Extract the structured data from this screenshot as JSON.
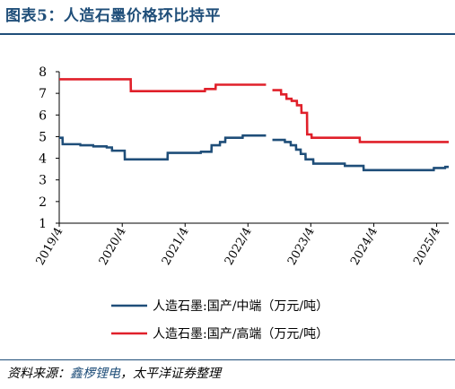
{
  "figure_title": "图表5：人造石墨价格环比持平",
  "source": {
    "prefix": "资料来源：",
    "org": "鑫椤锂电",
    "suffix": "，太平洋证券整理"
  },
  "colors": {
    "title": "#1f4e79",
    "axis": "#000000"
  },
  "chart_data": {
    "type": "line",
    "title": "",
    "xlabel": "",
    "ylabel": "",
    "ylim": [
      1,
      8
    ],
    "yticks": [
      1,
      2,
      3,
      4,
      5,
      6,
      7,
      8
    ],
    "xlim": [
      "2019-04-01",
      "2025-06-10"
    ],
    "xticks": [
      "2019/4",
      "2020/4",
      "2021/4",
      "2022/4",
      "2023/4",
      "2024/4",
      "2025/4"
    ],
    "legend_position": "bottom",
    "grid": false,
    "series": [
      {
        "name": "人造石墨:国产/中端（万元/吨）",
        "color": "#1f4e79",
        "points": [
          [
            "2019-04-01",
            4.95
          ],
          [
            "2019-04-20",
            4.95
          ],
          [
            "2019-04-21",
            4.65
          ],
          [
            "2019-08-01",
            4.65
          ],
          [
            "2019-08-02",
            4.6
          ],
          [
            "2019-10-15",
            4.6
          ],
          [
            "2019-10-16",
            4.55
          ],
          [
            "2020-01-01",
            4.55
          ],
          [
            "2020-01-02",
            4.5
          ],
          [
            "2020-02-01",
            4.5
          ],
          [
            "2020-02-02",
            4.35
          ],
          [
            "2020-04-15",
            4.35
          ],
          [
            "2020-04-16",
            3.95
          ],
          [
            "2020-12-20",
            3.95
          ],
          [
            "2020-12-21",
            4.25
          ],
          [
            "2021-07-01",
            4.25
          ],
          [
            "2021-07-02",
            4.3
          ],
          [
            "2021-09-01",
            4.3
          ],
          [
            "2021-09-02",
            4.6
          ],
          [
            "2021-10-20",
            4.6
          ],
          [
            "2021-10-21",
            4.75
          ],
          [
            "2021-11-20",
            4.75
          ],
          [
            "2021-11-21",
            4.95
          ],
          [
            "2022-03-01",
            4.95
          ],
          [
            "2022-03-02",
            5.05
          ],
          [
            "2022-07-15",
            5.05
          ],
          [
            "2022-07-16",
            null
          ],
          [
            "2022-08-20",
            null
          ],
          [
            "2022-08-21",
            4.85
          ],
          [
            "2022-11-01",
            4.85
          ],
          [
            "2022-11-02",
            4.75
          ],
          [
            "2022-12-05",
            4.75
          ],
          [
            "2022-12-06",
            4.6
          ],
          [
            "2023-01-05",
            4.6
          ],
          [
            "2023-01-06",
            4.4
          ],
          [
            "2023-02-01",
            4.4
          ],
          [
            "2023-02-02",
            4.2
          ],
          [
            "2023-03-01",
            4.2
          ],
          [
            "2023-03-02",
            3.95
          ],
          [
            "2023-04-15",
            3.95
          ],
          [
            "2023-04-16",
            3.75
          ],
          [
            "2023-10-15",
            3.75
          ],
          [
            "2023-10-16",
            3.65
          ],
          [
            "2024-02-01",
            3.65
          ],
          [
            "2024-02-02",
            3.45
          ],
          [
            "2025-03-15",
            3.45
          ],
          [
            "2025-03-16",
            3.55
          ],
          [
            "2025-05-20",
            3.55
          ],
          [
            "2025-05-21",
            3.6
          ],
          [
            "2025-06-10",
            3.6
          ]
        ]
      },
      {
        "name": "人造石墨:国产/高端（万元/吨）",
        "color": "#e0202a",
        "points": [
          [
            "2019-04-01",
            7.65
          ],
          [
            "2020-05-20",
            7.65
          ],
          [
            "2020-05-21",
            7.1
          ],
          [
            "2021-07-25",
            7.1
          ],
          [
            "2021-07-26",
            7.2
          ],
          [
            "2021-09-25",
            7.2
          ],
          [
            "2021-09-26",
            7.4
          ],
          [
            "2022-07-15",
            7.4
          ],
          [
            "2022-07-16",
            null
          ],
          [
            "2022-08-20",
            null
          ],
          [
            "2022-08-21",
            7.15
          ],
          [
            "2022-10-10",
            7.15
          ],
          [
            "2022-10-11",
            6.95
          ],
          [
            "2022-11-10",
            6.95
          ],
          [
            "2022-11-11",
            6.75
          ],
          [
            "2022-12-10",
            6.75
          ],
          [
            "2022-12-11",
            6.65
          ],
          [
            "2023-01-10",
            6.65
          ],
          [
            "2023-01-11",
            6.45
          ],
          [
            "2023-02-05",
            6.45
          ],
          [
            "2023-02-06",
            6.1
          ],
          [
            "2023-03-10",
            6.1
          ],
          [
            "2023-03-11",
            5.1
          ],
          [
            "2023-04-05",
            5.1
          ],
          [
            "2023-04-06",
            4.95
          ],
          [
            "2024-01-10",
            4.95
          ],
          [
            "2024-01-11",
            4.75
          ],
          [
            "2025-06-10",
            4.75
          ]
        ]
      }
    ]
  }
}
